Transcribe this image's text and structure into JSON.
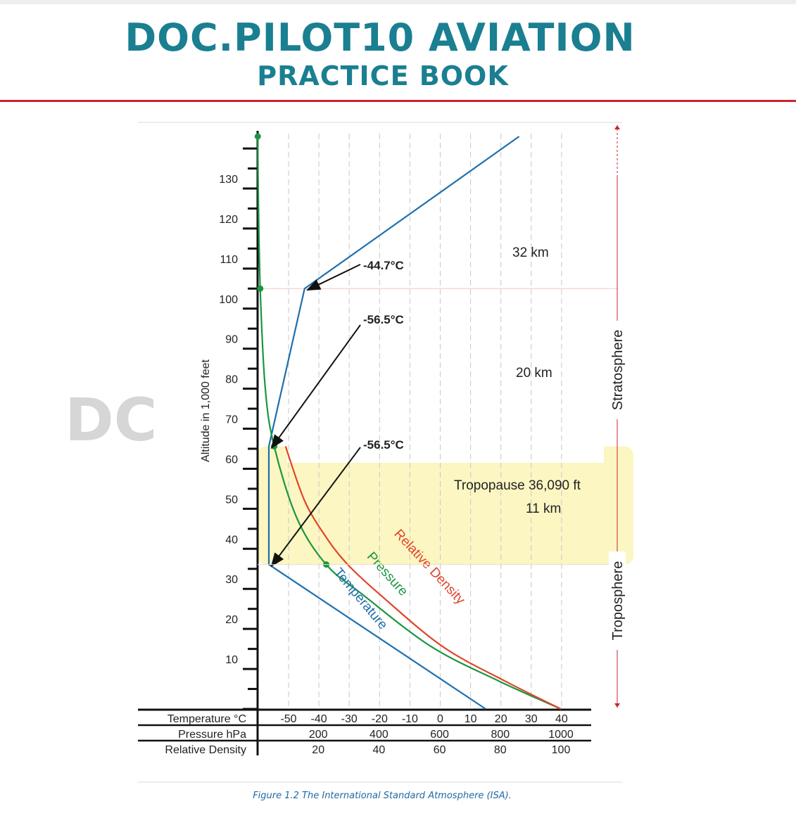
{
  "header": {
    "brand_title": "DOC.PILOT10 AVIATION",
    "brand_subtitle": "PRACTICE BOOK",
    "brand_color": "#1a7f91",
    "rule_color": "#c8262c",
    "watermark_text": "DC"
  },
  "caption": {
    "text": "Figure 1.2 The International Standard Atmosphere (ISA).",
    "color": "#1f6aa5"
  },
  "chart_data": {
    "type": "line",
    "title": "",
    "ylabel": "Altitude in 1,000 feet",
    "ylim": [
      0,
      140
    ],
    "y_ticks": [
      {
        "label": "10",
        "value": 10
      },
      {
        "label": "20",
        "value": 20
      },
      {
        "label": "30",
        "value": 30
      },
      {
        "label": "40",
        "value": 40
      },
      {
        "label": "50",
        "value": 50
      },
      {
        "label": "60",
        "value": 60
      },
      {
        "label": "70",
        "value": 70
      },
      {
        "label": "80",
        "value": 80
      },
      {
        "label": "90",
        "value": 90
      },
      {
        "label": "100",
        "value": 100
      },
      {
        "label": "110",
        "value": 110
      },
      {
        "label": "120",
        "value": 120
      },
      {
        "label": "130",
        "value": 130
      }
    ],
    "x_axes": [
      {
        "label": "Temperature °C",
        "unit": "C",
        "range": [
          -60,
          40
        ],
        "ticks": [
          "-50",
          "-40",
          "-30",
          "-20",
          "-10",
          "0",
          "10",
          "20",
          "30",
          "40"
        ],
        "tick_values": [
          -50,
          -40,
          -30,
          -20,
          -10,
          0,
          10,
          20,
          30,
          40
        ]
      },
      {
        "label": "Pressure  hPa",
        "unit": "hPa",
        "range": [
          0,
          1000
        ],
        "ticks": [
          "200",
          "400",
          "600",
          "800",
          "1000"
        ],
        "tick_values": [
          200,
          400,
          600,
          800,
          1000
        ]
      },
      {
        "label": "Relative Density",
        "unit": "%",
        "range": [
          0,
          100
        ],
        "ticks": [
          "20",
          "40",
          "60",
          "80",
          "100"
        ],
        "tick_values": [
          20,
          40,
          60,
          80,
          100
        ]
      }
    ],
    "series": [
      {
        "name": "Temperature",
        "axis": "Temperature °C",
        "color": "#1f6fab",
        "points": [
          [
            15,
            0
          ],
          [
            -56.5,
            36.09
          ],
          [
            -56.5,
            65.6
          ],
          [
            -44.7,
            105
          ],
          [
            26,
            143
          ]
        ]
      },
      {
        "name": "Pressure",
        "axis": "Pressure  hPa",
        "color": "#1a9641",
        "points": [
          [
            1000,
            0
          ],
          [
            795,
            7
          ],
          [
            572,
            15.6
          ],
          [
            349,
            28.4
          ],
          [
            226.3,
            36.09
          ],
          [
            130,
            47.6
          ],
          [
            54.7,
            65.6
          ],
          [
            25,
            80.3
          ],
          [
            8.7,
            105
          ],
          [
            2,
            130
          ],
          [
            0.6,
            143
          ]
        ],
        "markers": [
          [
            226.3,
            36.09
          ],
          [
            54.7,
            65.6
          ],
          [
            8.7,
            105
          ],
          [
            0.6,
            143
          ]
        ]
      },
      {
        "name": "Relative Density",
        "axis": "Relative Density",
        "color": "#e0452b",
        "points": [
          [
            100,
            0
          ],
          [
            81.5,
            7
          ],
          [
            61,
            15.6
          ],
          [
            40.6,
            28.4
          ],
          [
            29.7,
            36.09
          ],
          [
            22.5,
            43
          ],
          [
            15.5,
            52
          ],
          [
            9.2,
            65.6
          ]
        ]
      }
    ],
    "annotations": [
      {
        "text": "-44.7°C",
        "points_to": [
          -44.7,
          105
        ]
      },
      {
        "text": "-56.5°C",
        "points_to": [
          -56.5,
          65.6
        ]
      },
      {
        "text": "-56.5°C",
        "points_to": [
          -56.5,
          36.09
        ]
      },
      {
        "text": "32 km"
      },
      {
        "text": "20 km"
      },
      {
        "text": "Tropopause 36,090 ft"
      },
      {
        "text": "11 km"
      }
    ],
    "layers": [
      {
        "name": "Troposphere",
        "from": 0,
        "to": 36.09
      },
      {
        "name": "Stratosphere",
        "from": 36.09,
        "to": 143
      }
    ],
    "highlight_band": {
      "from": 36.09,
      "to": 65.6,
      "color": "#fbf6c2"
    },
    "grid": true
  }
}
